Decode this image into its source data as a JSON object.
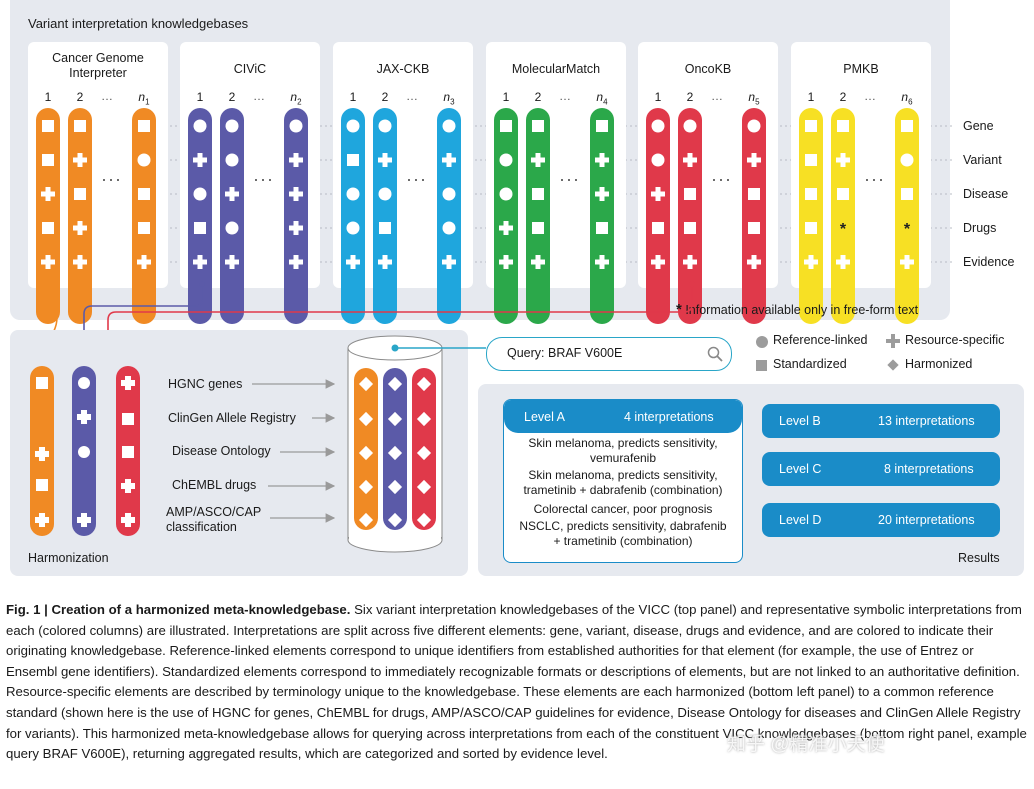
{
  "top_panel": {
    "title": "Variant interpretation knowledgebases",
    "knowledgebases": [
      {
        "name": "Cancer Genome Interpreter",
        "color": "#f08a24",
        "last_col": "n1"
      },
      {
        "name": "CIViC",
        "color": "#5b5aa8",
        "last_col": "n2"
      },
      {
        "name": "JAX-CKB",
        "color": "#1fa6dd",
        "last_col": "n3"
      },
      {
        "name": "MolecularMatch",
        "color": "#2ba84a",
        "last_col": "n4"
      },
      {
        "name": "OncoKB",
        "color": "#e0394a",
        "last_col": "n5"
      },
      {
        "name": "PMKB",
        "color": "#f7e024",
        "last_col": "n6"
      }
    ],
    "col_nums": [
      "1",
      "2",
      "…"
    ],
    "row_labels": [
      "Gene",
      "Variant",
      "Disease",
      "Drugs",
      "Evidence"
    ],
    "footnote": "Information available only in free-form text",
    "footnote_mark": "*"
  },
  "legend": {
    "reference_linked": "Reference-linked",
    "resource_specific": "Resource-specific",
    "standardized": "Standardized",
    "harmonized": "Harmonized"
  },
  "harmonization": {
    "label": "Harmonization",
    "sources": [
      "HGNC genes",
      "ClinGen Allele Registry",
      "Disease Ontology",
      "ChEMBL drugs",
      "AMP/ASCO/CAP classification"
    ]
  },
  "query": {
    "placeholder": "Query: BRAF V600E",
    "icon": "search-icon"
  },
  "results": {
    "label": "Results",
    "level_a": {
      "name": "Level A",
      "count": "4 interpretations",
      "items": [
        "Skin melanoma, predicts sensitivity, vemurafenib",
        "Skin melanoma, predicts sensitivity, trametinib + dabrafenib (combination)",
        "Colorectal cancer, poor prognosis",
        "NSCLC, predicts sensitivity, dabrafenib + trametinib (combination)"
      ]
    },
    "levels": [
      {
        "name": "Level B",
        "count": "13 interpretations"
      },
      {
        "name": "Level C",
        "count": "8 interpretations"
      },
      {
        "name": "Level D",
        "count": "20 interpretations"
      }
    ]
  },
  "caption": {
    "lead": "Fig. 1 | Creation of a harmonized meta-knowledgebase.",
    "body": " Six variant interpretation knowledgebases of the VICC (top panel) and representative symbolic interpretations from each (colored columns) are illustrated. Interpretations are split across five different elements: gene, variant, disease, drugs and evidence, and are colored to indicate their originating knowledgebase. Reference-linked elements correspond to unique identifiers from established authorities for that element (for example, the use of Entrez or Ensembl gene identifiers). Standardized elements correspond to immediately recognizable formats or descriptions of elements, but are not linked to an authoritative definition. Resource-specific elements are described by terminology unique to the knowledgebase. These elements are each harmonized (bottom left panel) to a common reference standard (shown here is the use of HGNC for genes, ChEMBL for drugs, AMP/ASCO/CAP guidelines for evidence, Disease Ontology for diseases and ClinGen Allele Registry for variants). This harmonized meta-knowledgebase allows for querying across interpretations from each of the constituent VICC knowledgebases (bottom right panel, example query BRAF V600E), returning aggregated results, which are categorized and sorted by evidence level."
  },
  "watermark": "知乎 @精准小天使",
  "colors": {
    "panel_bg": "#e6e9ef",
    "results_blue": "#1a8cc8",
    "query_line": "#2aa6c8",
    "arrow_gray": "#9a9a9a"
  }
}
